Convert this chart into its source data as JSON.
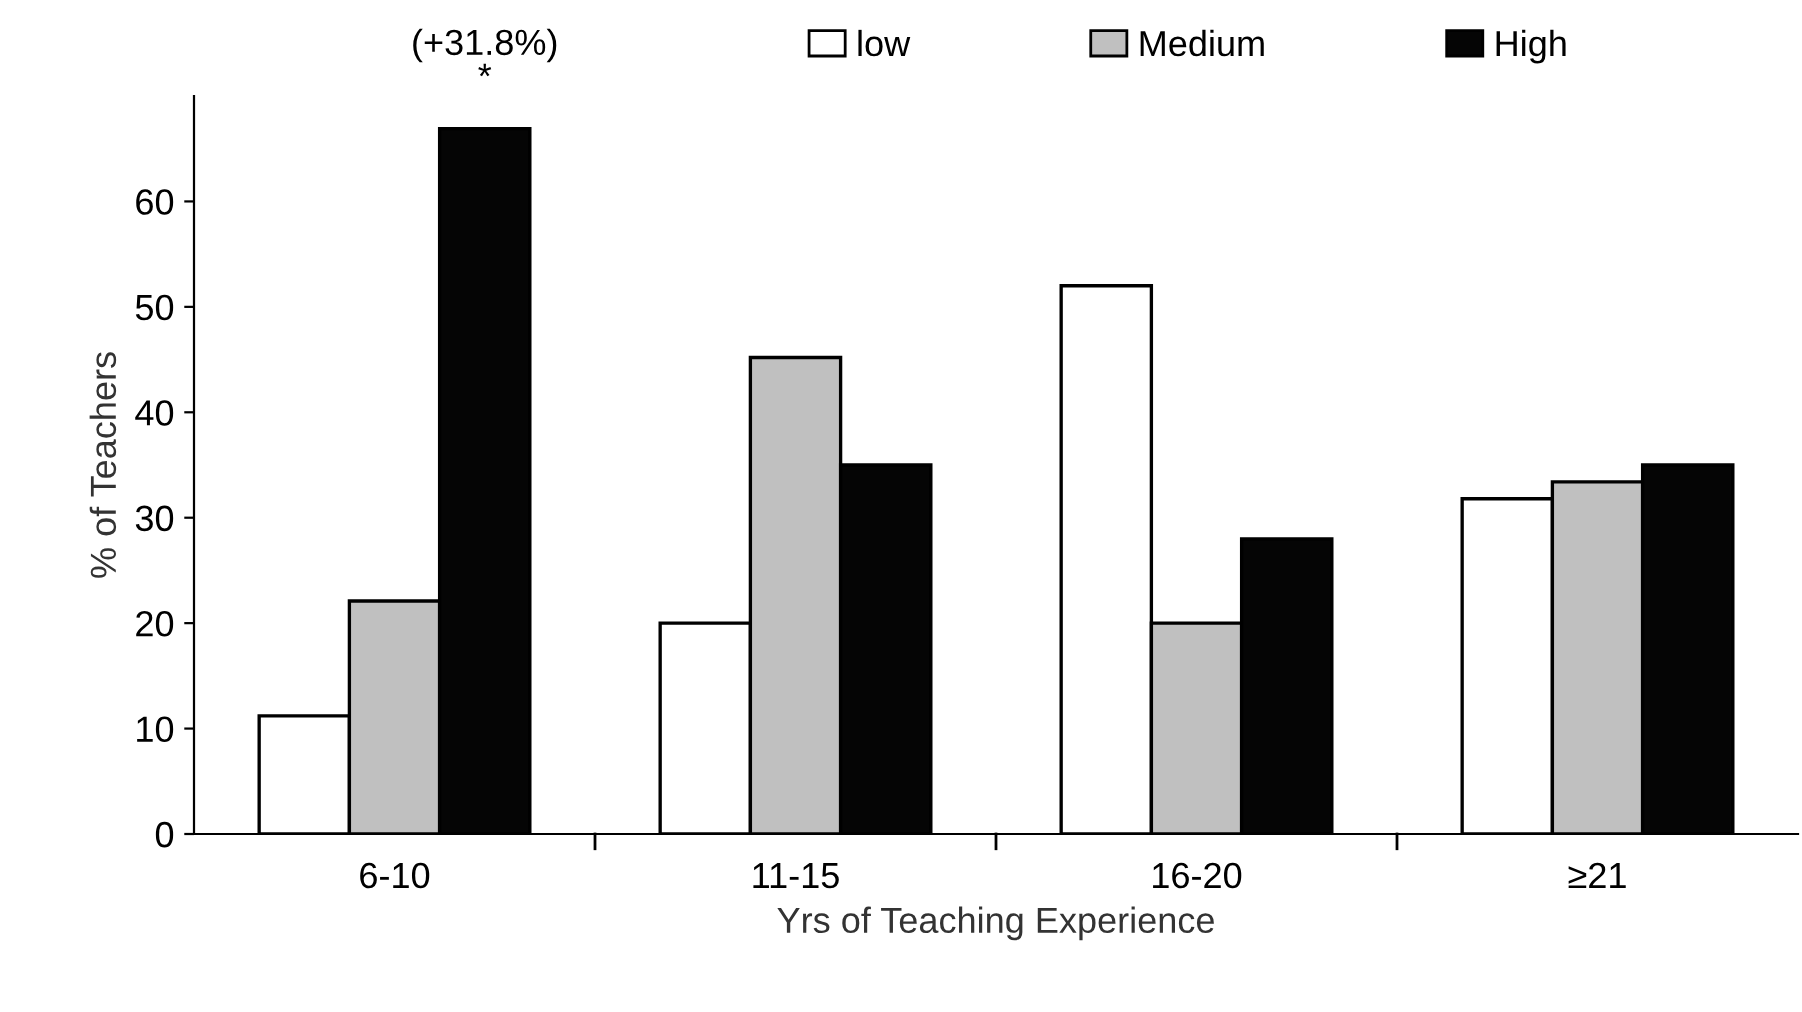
{
  "chart_data": {
    "type": "bar",
    "xlabel": "Yrs of Teaching Experience",
    "ylabel": "% of Teachers",
    "categories": [
      "6-10",
      "11-15",
      "16-20",
      "≥21"
    ],
    "series": [
      {
        "name": "low",
        "color": "#ffffff",
        "values": [
          11.2,
          20,
          52,
          31.8
        ]
      },
      {
        "name": "Medium",
        "color": "#c0c0c0",
        "values": [
          22.1,
          45.2,
          20,
          33.4
        ]
      },
      {
        "name": "High",
        "color": "#050505",
        "values": [
          66.9,
          35,
          28,
          35
        ]
      }
    ],
    "ylim": [
      0,
      70
    ],
    "yticks": [
      0,
      10,
      20,
      30,
      40,
      50,
      60
    ],
    "grid": false,
    "legend": "top",
    "annotations": [
      "(+31.8%)\n*"
    ]
  }
}
